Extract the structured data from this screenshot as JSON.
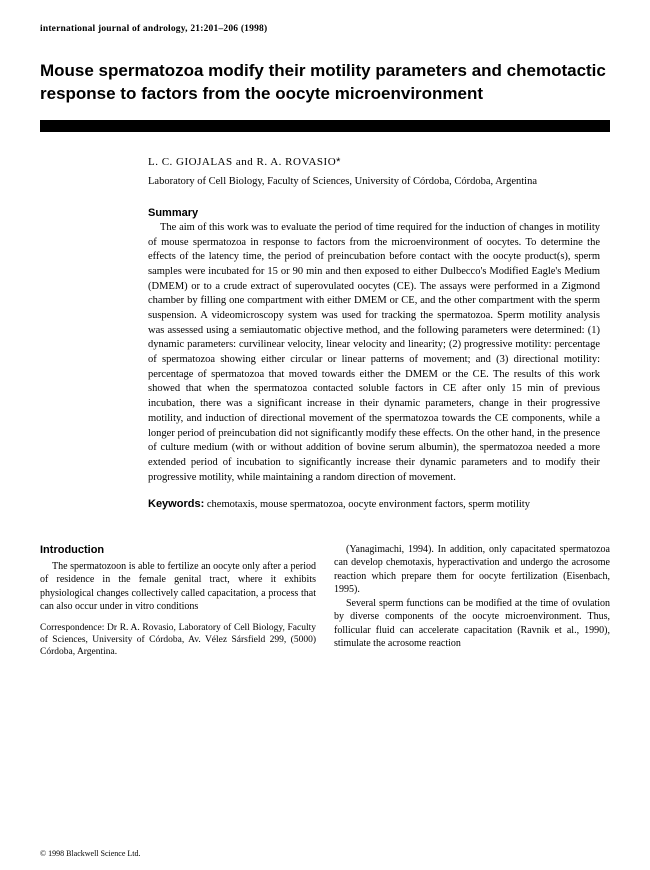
{
  "journal_header": "international journal of andrology, 21:201–206 (1998)",
  "title": "Mouse spermatozoa modify their motility parameters and chemotactic response to factors from the oocyte microenvironment",
  "authors": "L. C. GIOJALAS and R. A. ROVASIO",
  "affiliation": "Laboratory of Cell Biology, Faculty of Sciences, University of Córdoba, Córdoba, Argentina",
  "summary_heading": "Summary",
  "summary_text": "The aim of this work was to evaluate the period of time required for the induction of changes in motility of mouse spermatozoa in response to factors from the microenvironment of oocytes. To determine the effects of the latency time, the period of preincubation before contact with the oocyte product(s), sperm samples were incubated for 15 or 90 min and then exposed to either Dulbecco's Modified Eagle's Medium (DMEM) or to a crude extract of superovulated oocytes (CE). The assays were performed in a Zigmond chamber by filling one compartment with either DMEM or CE, and the other compartment with the sperm suspension. A videomicroscopy system was used for tracking the spermatozoa. Sperm motility analysis was assessed using a semiautomatic objective method, and the following parameters were determined: (1) dynamic parameters: curvilinear velocity, linear velocity and linearity; (2) progressive motility: percentage of spermatozoa showing either circular or linear patterns of movement; and (3) directional motility: percentage of spermatozoa that moved towards either the DMEM or the CE. The results of this work showed that when the spermatozoa contacted soluble factors in CE after only 15 min of previous incubation, there was a significant increase in their dynamic parameters, change in their progressive motility, and induction of directional movement of the spermatozoa towards the CE components, while a longer period of preincubation did not significantly modify these effects. On the other hand, in the presence of culture medium (with or without addition of bovine serum albumin), the spermatozoa needed a more extended period of incubation to significantly increase their dynamic parameters and to modify their progressive motility, while maintaining a random direction of movement.",
  "keywords_label": "Keywords:",
  "keywords_text": " chemotaxis, mouse spermatozoa, oocyte environment factors, sperm motility",
  "intro_heading": "Introduction",
  "col1_p1": "The spermatozoon is able to fertilize an oocyte only after a period of residence in the female genital tract, where it exhibits physiological changes collectively called capacitation, a process that can also occur under in vitro conditions",
  "correspondence": "Correspondence: Dr R. A. Rovasio, Laboratory of Cell Biology, Faculty of Sciences, University of Córdoba, Av. Vélez Sársfield 299, (5000) Córdoba, Argentina.",
  "col2_p1": "(Yanagimachi, 1994). In addition, only capacitated spermatozoa can develop chemotaxis, hyperactivation and undergo the acrosome reaction which prepare them for oocyte fertilization (Eisenbach, 1995).",
  "col2_p2": "Several sperm functions can be modified at the time of ovulation by diverse components of the oocyte microenvironment. Thus, follicular fluid can accelerate capacitation (Ravnik et al., 1990), stimulate the acrosome reaction",
  "copyright": "© 1998 Blackwell Science Ltd."
}
